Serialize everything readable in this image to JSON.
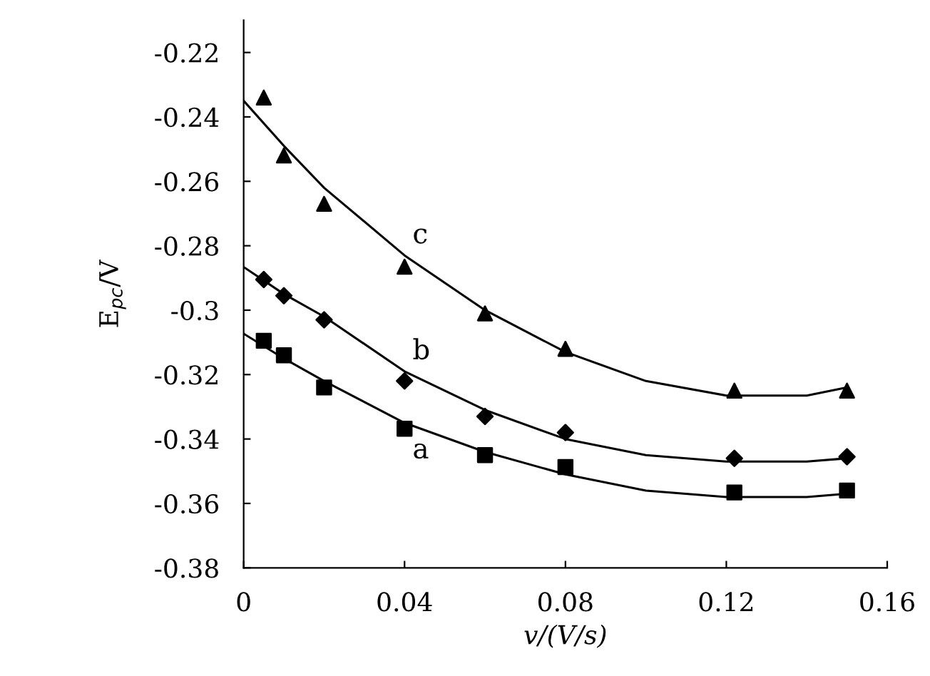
{
  "chart_data": {
    "type": "scatter",
    "xlabel": "v/(V/s)",
    "ylabel": "E$_{pc}$/V",
    "xlim": [
      0,
      0.16
    ],
    "ylim": [
      -0.38,
      -0.21
    ],
    "xticks": [
      0,
      0.04,
      0.08,
      0.12,
      0.16
    ],
    "yticks": [
      -0.38,
      -0.36,
      -0.34,
      -0.32,
      -0.3,
      -0.28,
      -0.26,
      -0.24,
      -0.22
    ],
    "grid": false,
    "legend": false,
    "series": [
      {
        "marker": "square",
        "color": "#000000",
        "x": [
          0.005,
          0.01,
          0.02,
          0.04,
          0.06,
          0.08,
          0.122,
          0.15
        ],
        "values": [
          -0.3095,
          -0.314,
          -0.324,
          -0.3368,
          -0.345,
          -0.3487,
          -0.3566,
          -0.356
        ]
      },
      {
        "marker": "diamond",
        "color": "#000000",
        "x": [
          0.005,
          0.01,
          0.02,
          0.04,
          0.06,
          0.08,
          0.122,
          0.15
        ],
        "values": [
          -0.2905,
          -0.2955,
          -0.303,
          -0.322,
          -0.333,
          -0.338,
          -0.346,
          -0.3455
        ]
      },
      {
        "marker": "triangle",
        "color": "#000000",
        "x": [
          0.005,
          0.01,
          0.02,
          0.04,
          0.06,
          0.08,
          0.122,
          0.15
        ],
        "values": [
          -0.234,
          -0.252,
          -0.267,
          -0.2865,
          -0.301,
          -0.312,
          -0.325,
          -0.325
        ]
      },
      {
        "type": "line",
        "name": "a",
        "color": "#000000",
        "x": [
          0,
          0.01,
          0.02,
          0.04,
          0.06,
          0.08,
          0.1,
          0.12,
          0.14,
          0.15
        ],
        "values": [
          -0.3073,
          -0.315,
          -0.322,
          -0.335,
          -0.344,
          -0.351,
          -0.356,
          -0.358,
          -0.358,
          -0.357
        ]
      },
      {
        "type": "line",
        "name": "b",
        "color": "#000000",
        "x": [
          0,
          0.01,
          0.02,
          0.04,
          0.06,
          0.08,
          0.1,
          0.12,
          0.14,
          0.15
        ],
        "values": [
          -0.2866,
          -0.295,
          -0.302,
          -0.319,
          -0.331,
          -0.34,
          -0.345,
          -0.347,
          -0.347,
          -0.346
        ]
      },
      {
        "type": "line",
        "name": "c",
        "color": "#000000",
        "x": [
          0,
          0.01,
          0.02,
          0.04,
          0.06,
          0.08,
          0.1,
          0.12,
          0.14,
          0.15
        ],
        "values": [
          -0.235,
          -0.249,
          -0.262,
          -0.283,
          -0.3,
          -0.313,
          -0.322,
          -0.3265,
          -0.3265,
          -0.324
        ]
      }
    ]
  }
}
